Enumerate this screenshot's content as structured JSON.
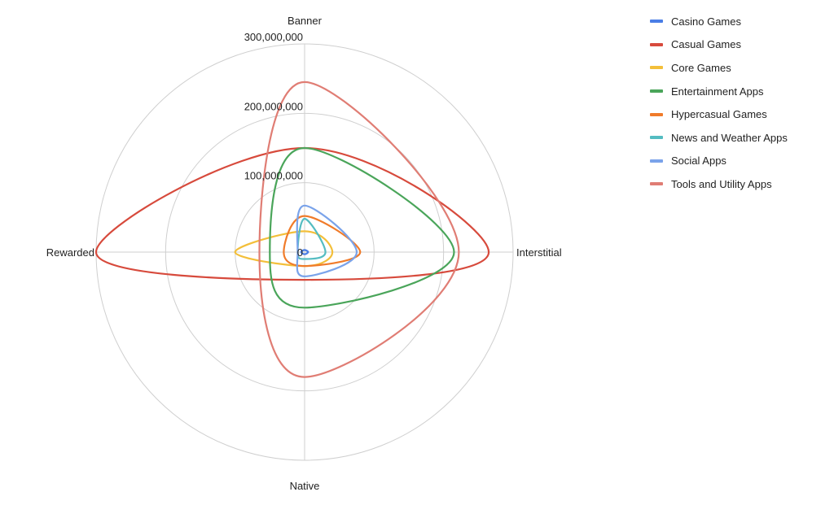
{
  "chart_data": {
    "type": "radar",
    "curve": "smooth",
    "axes": [
      "Banner",
      "Interstitial",
      "Native",
      "Rewarded"
    ],
    "r_ticks": [
      "0",
      "100,000,000",
      "200,000,000",
      "300,000,000"
    ],
    "r_max": 300000000,
    "grid": true,
    "legend_position": "right",
    "series": [
      {
        "name": "Casino Games",
        "color": "#4a7ee6",
        "values": [
          3000000,
          5000000,
          3000000,
          5000000
        ]
      },
      {
        "name": "Casual Games",
        "color": "#d74a3c",
        "values": [
          150000000,
          265000000,
          40000000,
          300000000
        ]
      },
      {
        "name": "Core Games",
        "color": "#f3bf3a",
        "values": [
          30000000,
          40000000,
          20000000,
          100000000
        ]
      },
      {
        "name": "Entertainment Apps",
        "color": "#4aa55a",
        "values": [
          150000000,
          215000000,
          80000000,
          50000000
        ]
      },
      {
        "name": "Hypercasual Games",
        "color": "#f07b2a",
        "values": [
          52000000,
          80000000,
          20000000,
          30000000
        ]
      },
      {
        "name": "News and Weather Apps",
        "color": "#54bcc1",
        "values": [
          48000000,
          30000000,
          10000000,
          10000000
        ]
      },
      {
        "name": "Social Apps",
        "color": "#7aa3ea",
        "values": [
          67000000,
          75000000,
          35000000,
          10000000
        ]
      },
      {
        "name": "Tools and Utility Apps",
        "color": "#e07d74",
        "values": [
          245000000,
          222000000,
          180000000,
          65000000
        ]
      }
    ]
  }
}
